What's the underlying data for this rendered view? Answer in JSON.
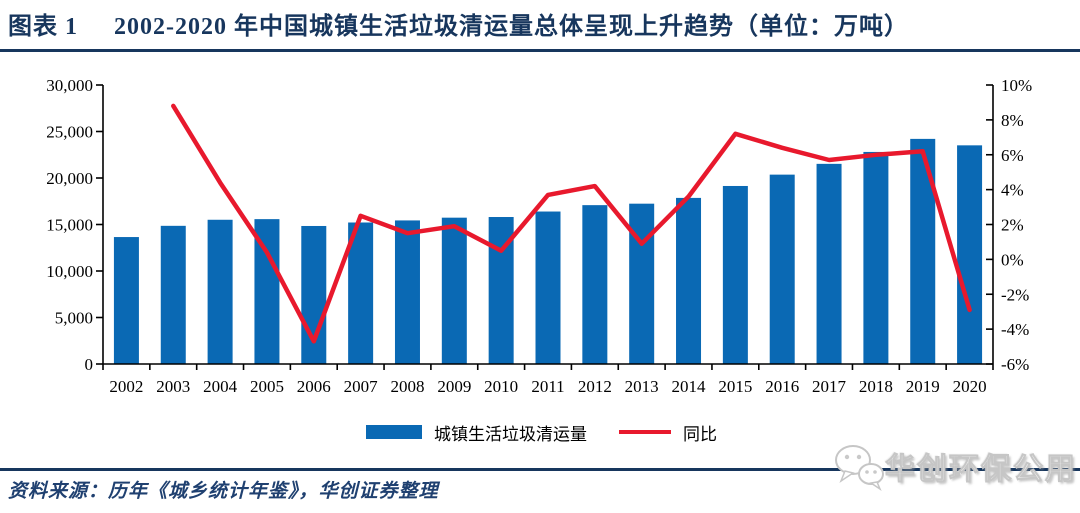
{
  "header": {
    "figure_label": "图表 1",
    "title": "2002-2020 年中国城镇生活垃圾清运量总体呈现上升趋势（单位：万吨）"
  },
  "colors": {
    "navy": "#17365D",
    "bar_blue": "#0A69B4",
    "line_red": "#E8192D",
    "axis_black": "#000000"
  },
  "chart_data": {
    "type": "bar",
    "title": "",
    "xlabel": "",
    "ylabel_left": "万吨",
    "ylabel_right": "%",
    "categories": [
      "2002",
      "2003",
      "2004",
      "2005",
      "2006",
      "2007",
      "2008",
      "2009",
      "2010",
      "2011",
      "2012",
      "2013",
      "2014",
      "2015",
      "2016",
      "2017",
      "2018",
      "2019",
      "2020"
    ],
    "series": [
      {
        "name": "城镇生活垃圾清运量",
        "type": "bar",
        "axis": "left",
        "color": "#0A69B4",
        "values": [
          13650,
          14857,
          15509,
          15577,
          14841,
          15215,
          15438,
          15734,
          15805,
          16395,
          17081,
          17239,
          17860,
          19142,
          20362,
          21521,
          22802,
          24206,
          23512
        ]
      },
      {
        "name": "同比",
        "type": "line",
        "axis": "right",
        "color": "#E8192D",
        "values": [
          null,
          8.8,
          4.4,
          0.4,
          -4.7,
          2.5,
          1.5,
          1.9,
          0.5,
          3.7,
          4.2,
          0.9,
          3.6,
          7.2,
          6.4,
          5.7,
          6.0,
          6.2,
          -2.9
        ]
      }
    ],
    "left_axis": {
      "min": 0,
      "max": 30000,
      "tick_step": 5000,
      "tick_labels": [
        "30,000",
        "25,000",
        "20,000",
        "15,000",
        "10,000",
        "5,000",
        "0"
      ]
    },
    "right_axis": {
      "min": -6,
      "max": 10,
      "tick_step": 2,
      "tick_labels": [
        "10%",
        "8%",
        "6%",
        "4%",
        "2%",
        "0%",
        "-2%",
        "-4%",
        "-6%"
      ]
    },
    "grid": false,
    "legend_position": "bottom"
  },
  "footer": {
    "source_text": "资料来源：历年《城乡统计年鉴》，华创证券整理"
  },
  "watermark": {
    "text": "华创环保公用",
    "icon": "wechat-icon"
  }
}
